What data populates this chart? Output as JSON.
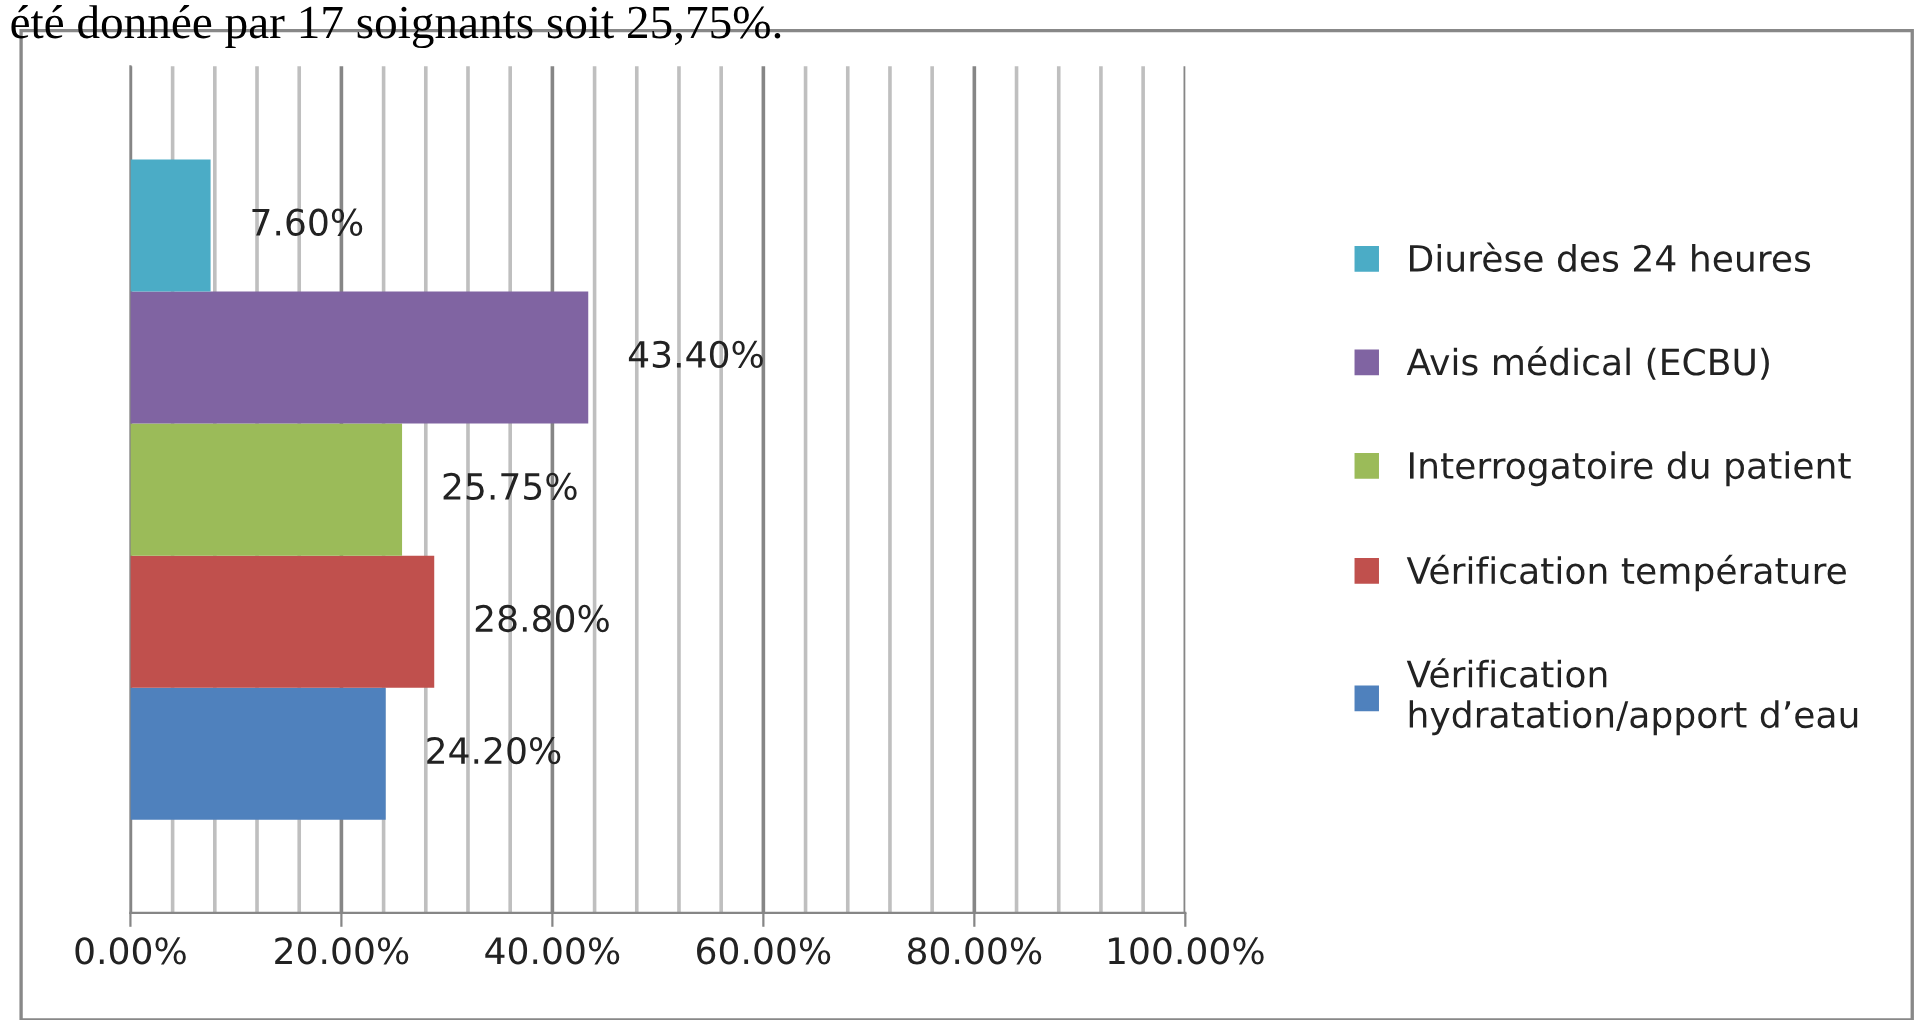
{
  "chart_data": {
    "type": "bar",
    "orientation": "horizontal",
    "categories": [
      null
    ],
    "series": [
      {
        "name": "Vérification hydratation/apport d’eau",
        "color": "#4f81bd",
        "values": [
          24.2
        ],
        "value_labels": [
          "24.20%"
        ]
      },
      {
        "name": "Vérification température",
        "color": "#c0504d",
        "values": [
          28.8
        ],
        "value_labels": [
          "28.80%"
        ]
      },
      {
        "name": "Interrogatoire du patient",
        "color": "#9bbb59",
        "values": [
          25.75
        ],
        "value_labels": [
          "25.75%"
        ]
      },
      {
        "name": "Avis médical (ECBU)",
        "color": "#8064a2",
        "values": [
          43.4
        ],
        "value_labels": [
          "43.40%"
        ]
      },
      {
        "name": "Diurèse des 24 heures",
        "color": "#4bacc6",
        "values": [
          7.6
        ],
        "value_labels": [
          "7.60%"
        ]
      }
    ],
    "xlim": [
      0,
      100
    ],
    "xticks": [
      {
        "value": 0,
        "label": "0.00%"
      },
      {
        "value": 4,
        "label": null
      },
      {
        "value": 8,
        "label": null
      },
      {
        "value": 12,
        "label": null
      },
      {
        "value": 16,
        "label": null
      },
      {
        "value": 20,
        "label": "20.00%"
      },
      {
        "value": 24,
        "label": null
      },
      {
        "value": 28,
        "label": null
      },
      {
        "value": 32,
        "label": null
      },
      {
        "value": 36,
        "label": null
      },
      {
        "value": 40,
        "label": "40.00%"
      },
      {
        "value": 44,
        "label": null
      },
      {
        "value": 48,
        "label": null
      },
      {
        "value": 52,
        "label": null
      },
      {
        "value": 56,
        "label": null
      },
      {
        "value": 60,
        "label": "60.00%"
      },
      {
        "value": 64,
        "label": null
      },
      {
        "value": 68,
        "label": null
      },
      {
        "value": 72,
        "label": null
      },
      {
        "value": 76,
        "label": null
      },
      {
        "value": 80,
        "label": "80.00%"
      },
      {
        "value": 84,
        "label": null
      },
      {
        "value": 88,
        "label": null
      },
      {
        "value": 92,
        "label": null
      },
      {
        "value": 96,
        "label": null
      },
      {
        "value": 100,
        "label": "100.00%"
      }
    ],
    "grid": "x",
    "legend": "right",
    "annotations": [
      "été donnée par 17 soignants soit 25,75%."
    ]
  }
}
